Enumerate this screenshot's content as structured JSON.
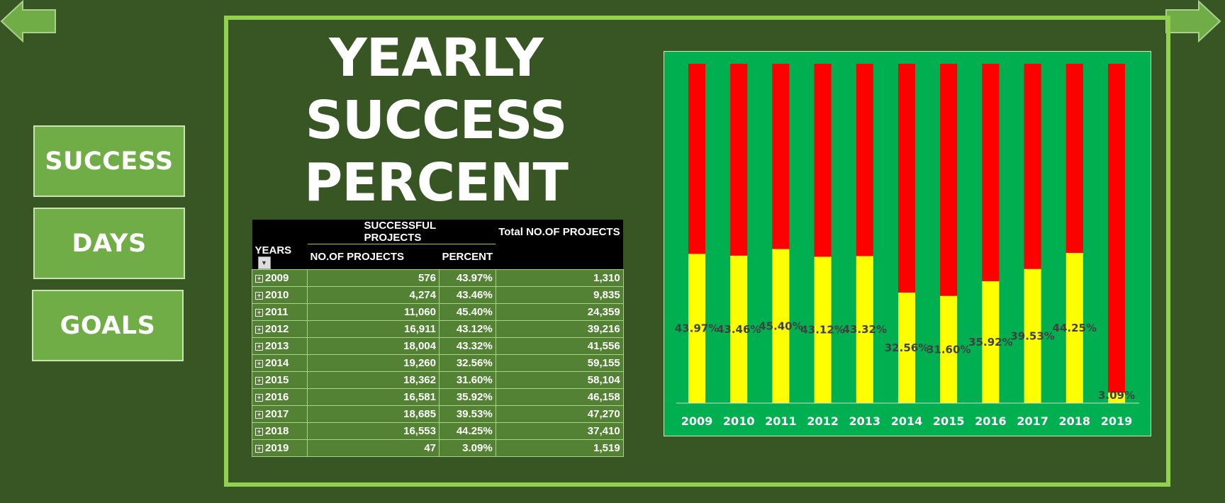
{
  "nav": {
    "success_label": "SUCCESS",
    "days_label": "DAYS",
    "goals_label": "GOALS"
  },
  "title": {
    "line1": "YEARLY",
    "line2": "SUCCESS",
    "line3": "PERCENT"
  },
  "pivot": {
    "group_header": "SUCCESSFUL PROJECTS",
    "total_header": "Total NO.OF PROJECTS",
    "col_years": "YEARS",
    "col_projects": "NO.OF PROJECTS",
    "col_percent": "PERCENT",
    "rows": [
      {
        "year": "2009",
        "projects": "576",
        "percent": "43.97%",
        "total": "1,310"
      },
      {
        "year": "2010",
        "projects": "4,274",
        "percent": "43.46%",
        "total": "9,835"
      },
      {
        "year": "2011",
        "projects": "11,060",
        "percent": "45.40%",
        "total": "24,359"
      },
      {
        "year": "2012",
        "projects": "16,911",
        "percent": "43.12%",
        "total": "39,216"
      },
      {
        "year": "2013",
        "projects": "18,004",
        "percent": "43.32%",
        "total": "41,556"
      },
      {
        "year": "2014",
        "projects": "19,260",
        "percent": "32.56%",
        "total": "59,155"
      },
      {
        "year": "2015",
        "projects": "18,362",
        "percent": "31.60%",
        "total": "58,104"
      },
      {
        "year": "2016",
        "projects": "16,581",
        "percent": "35.92%",
        "total": "46,158"
      },
      {
        "year": "2017",
        "projects": "18,685",
        "percent": "39.53%",
        "total": "47,270"
      },
      {
        "year": "2018",
        "projects": "16,553",
        "percent": "44.25%",
        "total": "37,410"
      },
      {
        "year": "2019",
        "projects": "47",
        "percent": "3.09%",
        "total": "1,519"
      }
    ]
  },
  "chart_data": {
    "type": "bar",
    "stacked": true,
    "categories": [
      "2009",
      "2010",
      "2011",
      "2012",
      "2013",
      "2014",
      "2015",
      "2016",
      "2017",
      "2018",
      "2019"
    ],
    "series": [
      {
        "values": [
          43.97,
          43.46,
          45.4,
          43.12,
          43.32,
          32.56,
          31.6,
          35.92,
          39.53,
          44.25,
          3.09
        ],
        "color": "#ffff00"
      },
      {
        "values": [
          56.03,
          56.54,
          54.6,
          56.88,
          56.68,
          67.44,
          68.4,
          64.08,
          60.47,
          55.75,
          96.91
        ],
        "color": "#ff0000"
      }
    ],
    "data_labels": [
      "43.97%",
      "43.46%",
      "45.40%",
      "43.12%",
      "43.32%",
      "32.56%",
      "31.60%",
      "35.92%",
      "39.53%",
      "44.25%",
      "3.09%"
    ],
    "ylim": [
      0,
      100
    ],
    "background": "#00b050",
    "legend": "none",
    "grid": false
  }
}
